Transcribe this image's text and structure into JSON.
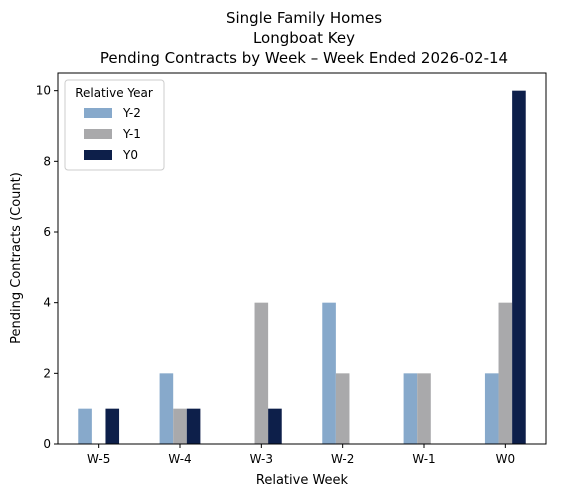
{
  "chart_data": {
    "type": "bar",
    "title": [
      "Single Family Homes",
      "Longboat Key",
      "Pending Contracts by Week – Week Ended 2026-02-14"
    ],
    "xlabel": "Relative Week",
    "ylabel": "Pending Contracts (Count)",
    "categories": [
      "W-5",
      "W-4",
      "W-3",
      "W-2",
      "W-1",
      "W0"
    ],
    "ylim": [
      0,
      10.5
    ],
    "yticks": [
      0,
      2,
      4,
      6,
      8,
      10
    ],
    "grid": false,
    "legend": {
      "title": "Relative Year",
      "placement": "top-left"
    },
    "series": [
      {
        "name": "Y-2",
        "color": "#87a9cb",
        "values": [
          1,
          2,
          0,
          4,
          2,
          2
        ]
      },
      {
        "name": "Y-1",
        "color": "#a9a9ab",
        "values": [
          0,
          1,
          4,
          2,
          2,
          4
        ]
      },
      {
        "name": "Y0",
        "color": "#0d1f4a",
        "values": [
          1,
          1,
          1,
          0,
          0,
          10
        ]
      }
    ]
  }
}
